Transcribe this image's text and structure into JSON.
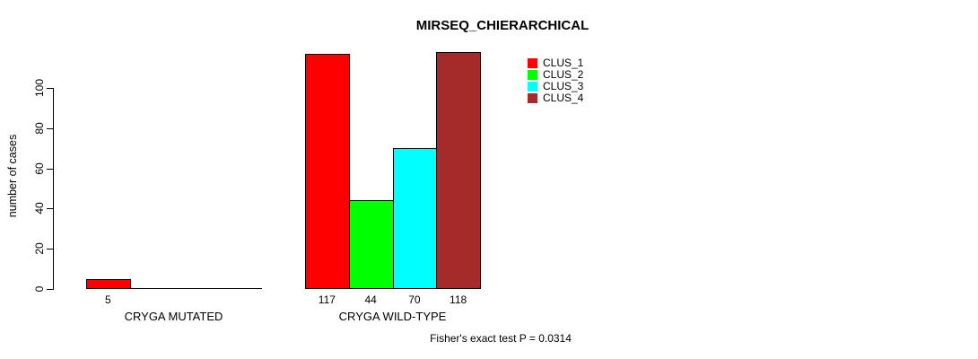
{
  "chart_data": {
    "type": "bar",
    "title": "MIRSEQ_CHIERARCHICAL",
    "xlabel": "",
    "ylabel": "number of cases",
    "ylim": [
      0,
      118
    ],
    "yticks": [
      0,
      20,
      40,
      60,
      80,
      100
    ],
    "grid": false,
    "legend_position": "top-right",
    "categories": [
      "CRYGA MUTATED",
      "CRYGA WILD-TYPE"
    ],
    "series": [
      {
        "name": "CLUS_1",
        "color": "#ff0000",
        "values": [
          5,
          117
        ]
      },
      {
        "name": "CLUS_2",
        "color": "#00ff00",
        "values": [
          0,
          44
        ]
      },
      {
        "name": "CLUS_3",
        "color": "#00ffff",
        "values": [
          0,
          70
        ]
      },
      {
        "name": "CLUS_4",
        "color": "#a52a2a",
        "values": [
          0,
          118
        ]
      }
    ],
    "bar_value_labels": [
      "5",
      "117",
      "44",
      "70",
      "118"
    ],
    "annotation": "Fisher's exact test P = 0.0314"
  },
  "colors": {
    "axis": "#000000",
    "background": "#ffffff",
    "clus_1": "#ff0000",
    "clus_2": "#00ff00",
    "clus_3": "#00ffff",
    "clus_4": "#a52a2a"
  }
}
